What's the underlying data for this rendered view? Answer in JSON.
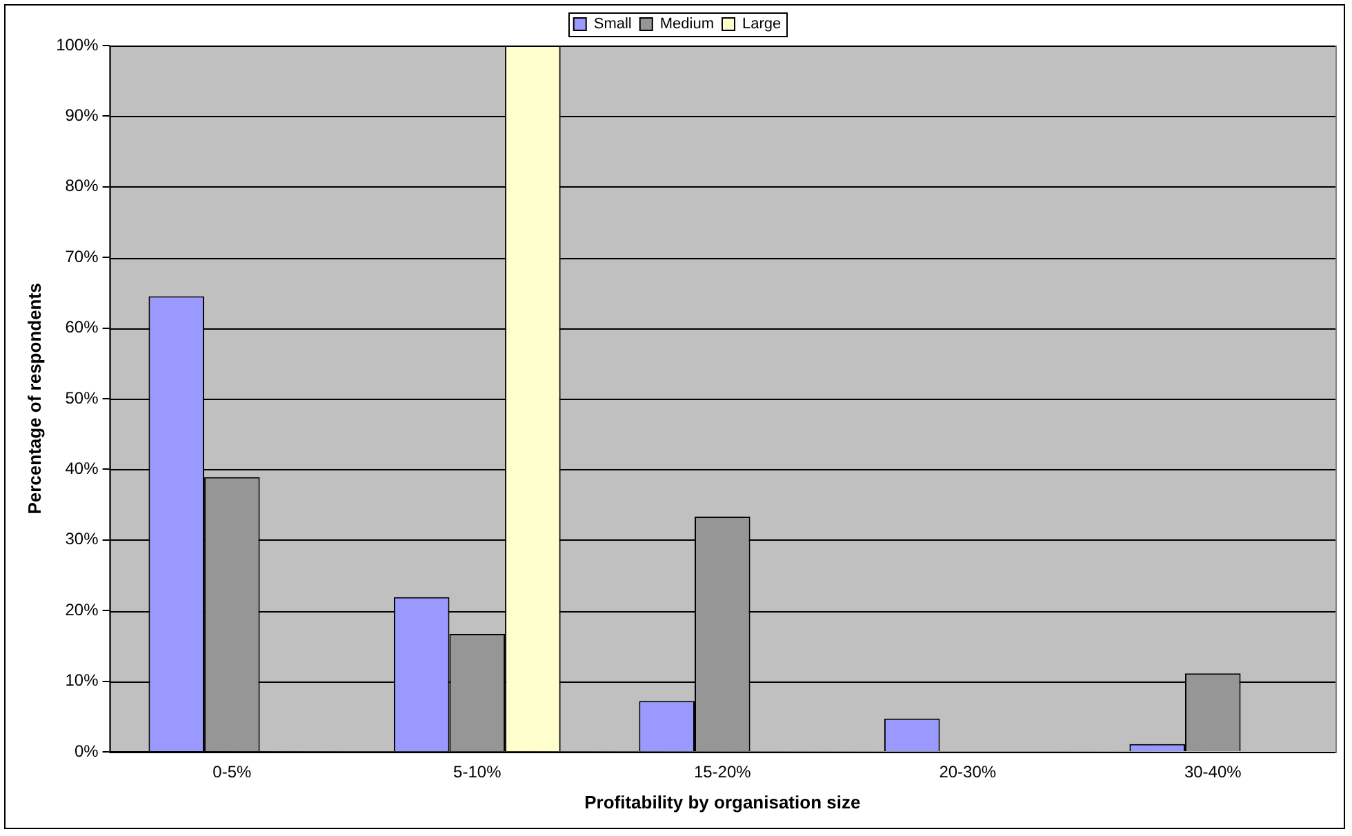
{
  "chart_data": {
    "type": "bar",
    "xlabel": "Profitability by organisation size",
    "ylabel": "Percentage of respondents",
    "categories": [
      "0-5%",
      "5-10%",
      "15-20%",
      "20-30%",
      "30-40%"
    ],
    "series": [
      {
        "name": "Small",
        "color": "#9999ff",
        "values": [
          64.5,
          21.9,
          7.2,
          4.7,
          1.1
        ]
      },
      {
        "name": "Medium",
        "color": "#969696",
        "values": [
          38.9,
          16.7,
          33.3,
          0,
          11.1
        ]
      },
      {
        "name": "Large",
        "color": "#ffffcc",
        "values": [
          0,
          100,
          0,
          0,
          0
        ]
      }
    ],
    "ylim": [
      0,
      100
    ],
    "yticks": [
      {
        "value": 0,
        "label": "0%"
      },
      {
        "value": 10,
        "label": "10%"
      },
      {
        "value": 20,
        "label": "20%"
      },
      {
        "value": 30,
        "label": "30%"
      },
      {
        "value": 40,
        "label": "40%"
      },
      {
        "value": 50,
        "label": "50%"
      },
      {
        "value": 60,
        "label": "60%"
      },
      {
        "value": 70,
        "label": "70%"
      },
      {
        "value": 80,
        "label": "80%"
      },
      {
        "value": 90,
        "label": "90%"
      },
      {
        "value": 100,
        "label": "100%"
      }
    ],
    "grid": "y",
    "legend": "top"
  }
}
